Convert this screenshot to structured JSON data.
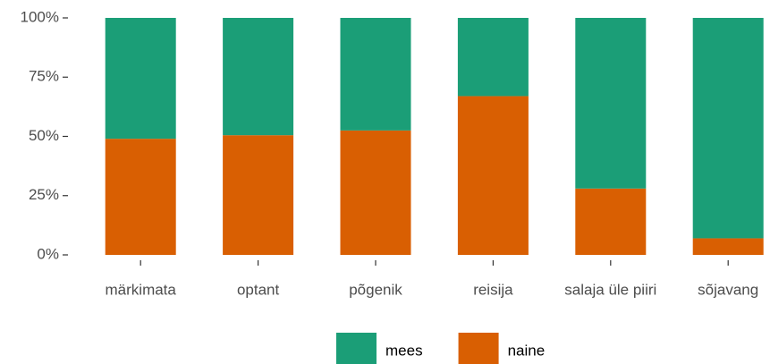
{
  "chart_data": {
    "type": "stacked_bar",
    "categories": [
      "märkimata",
      "optant",
      "põgenik",
      "reisija",
      "salaja üle piiri",
      "sõjavang"
    ],
    "series": [
      {
        "name": "mees",
        "color": "#1b9e77",
        "values": [
          51,
          49.5,
          47.5,
          33,
          72,
          93
        ]
      },
      {
        "name": "naine",
        "color": "#d95f02",
        "values": [
          49,
          50.5,
          52.5,
          67,
          28,
          7
        ]
      }
    ],
    "ylim": [
      0,
      100
    ],
    "yticks": [
      {
        "value": 0,
        "label": "0%"
      },
      {
        "value": 25,
        "label": "25%"
      },
      {
        "value": 50,
        "label": "50%"
      },
      {
        "value": 75,
        "label": "75%"
      },
      {
        "value": 100,
        "label": "100%"
      }
    ],
    "legend": "bottom"
  }
}
